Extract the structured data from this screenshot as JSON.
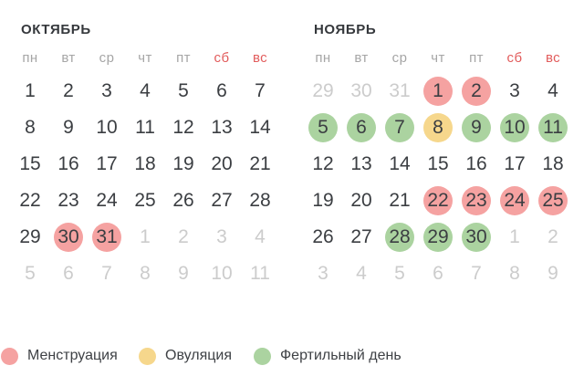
{
  "colors": {
    "title_text": "#35383c",
    "weekday_text": "#a6a6a6",
    "weekend_text": "#e25c5c",
    "day_text": "#3b3e42",
    "muted_day_text": "#cccccc",
    "legend_text": "#3e4145",
    "menstruation": "#f5a2a1",
    "ovulation": "#f6d78c",
    "fertile": "#abd3a0"
  },
  "months": [
    {
      "title": "ОКТЯБРЬ",
      "weekdays": [
        {
          "label": "пн",
          "weekend": false
        },
        {
          "label": "вт",
          "weekend": false
        },
        {
          "label": "ср",
          "weekend": false
        },
        {
          "label": "чт",
          "weekend": false
        },
        {
          "label": "пт",
          "weekend": false
        },
        {
          "label": "сб",
          "weekend": true
        },
        {
          "label": "вс",
          "weekend": true
        }
      ],
      "days": [
        {
          "n": 1,
          "state": "normal"
        },
        {
          "n": 2,
          "state": "normal"
        },
        {
          "n": 3,
          "state": "normal"
        },
        {
          "n": 4,
          "state": "normal"
        },
        {
          "n": 5,
          "state": "normal"
        },
        {
          "n": 6,
          "state": "normal"
        },
        {
          "n": 7,
          "state": "normal"
        },
        {
          "n": 8,
          "state": "normal"
        },
        {
          "n": 9,
          "state": "normal"
        },
        {
          "n": 10,
          "state": "normal"
        },
        {
          "n": 11,
          "state": "normal"
        },
        {
          "n": 12,
          "state": "normal"
        },
        {
          "n": 13,
          "state": "normal"
        },
        {
          "n": 14,
          "state": "normal"
        },
        {
          "n": 15,
          "state": "normal"
        },
        {
          "n": 16,
          "state": "normal"
        },
        {
          "n": 17,
          "state": "normal"
        },
        {
          "n": 18,
          "state": "normal"
        },
        {
          "n": 19,
          "state": "normal"
        },
        {
          "n": 20,
          "state": "normal"
        },
        {
          "n": 21,
          "state": "normal"
        },
        {
          "n": 22,
          "state": "normal"
        },
        {
          "n": 23,
          "state": "normal"
        },
        {
          "n": 24,
          "state": "normal"
        },
        {
          "n": 25,
          "state": "normal"
        },
        {
          "n": 26,
          "state": "normal"
        },
        {
          "n": 27,
          "state": "normal"
        },
        {
          "n": 28,
          "state": "normal"
        },
        {
          "n": 29,
          "state": "normal"
        },
        {
          "n": 30,
          "state": "menstruation"
        },
        {
          "n": 31,
          "state": "menstruation"
        },
        {
          "n": 1,
          "state": "outside"
        },
        {
          "n": 2,
          "state": "outside"
        },
        {
          "n": 3,
          "state": "outside"
        },
        {
          "n": 4,
          "state": "outside"
        },
        {
          "n": 5,
          "state": "outside"
        },
        {
          "n": 6,
          "state": "outside"
        },
        {
          "n": 7,
          "state": "outside"
        },
        {
          "n": 8,
          "state": "outside"
        },
        {
          "n": 9,
          "state": "outside"
        },
        {
          "n": 10,
          "state": "outside"
        },
        {
          "n": 11,
          "state": "outside"
        }
      ]
    },
    {
      "title": "НОЯБРЬ",
      "weekdays": [
        {
          "label": "пн",
          "weekend": false
        },
        {
          "label": "вт",
          "weekend": false
        },
        {
          "label": "ср",
          "weekend": false
        },
        {
          "label": "чт",
          "weekend": false
        },
        {
          "label": "пт",
          "weekend": false
        },
        {
          "label": "сб",
          "weekend": true
        },
        {
          "label": "вс",
          "weekend": true
        }
      ],
      "days": [
        {
          "n": 29,
          "state": "outside"
        },
        {
          "n": 30,
          "state": "outside"
        },
        {
          "n": 31,
          "state": "outside"
        },
        {
          "n": 1,
          "state": "menstruation"
        },
        {
          "n": 2,
          "state": "menstruation"
        },
        {
          "n": 3,
          "state": "normal"
        },
        {
          "n": 4,
          "state": "normal"
        },
        {
          "n": 5,
          "state": "fertile"
        },
        {
          "n": 6,
          "state": "fertile"
        },
        {
          "n": 7,
          "state": "fertile"
        },
        {
          "n": 8,
          "state": "ovulation"
        },
        {
          "n": 9,
          "state": "fertile"
        },
        {
          "n": 10,
          "state": "fertile"
        },
        {
          "n": 11,
          "state": "fertile"
        },
        {
          "n": 12,
          "state": "normal"
        },
        {
          "n": 13,
          "state": "normal"
        },
        {
          "n": 14,
          "state": "normal"
        },
        {
          "n": 15,
          "state": "normal"
        },
        {
          "n": 16,
          "state": "normal"
        },
        {
          "n": 17,
          "state": "normal"
        },
        {
          "n": 18,
          "state": "normal"
        },
        {
          "n": 19,
          "state": "normal"
        },
        {
          "n": 20,
          "state": "normal"
        },
        {
          "n": 21,
          "state": "normal"
        },
        {
          "n": 22,
          "state": "menstruation"
        },
        {
          "n": 23,
          "state": "menstruation"
        },
        {
          "n": 24,
          "state": "menstruation"
        },
        {
          "n": 25,
          "state": "menstruation"
        },
        {
          "n": 26,
          "state": "normal"
        },
        {
          "n": 27,
          "state": "normal"
        },
        {
          "n": 28,
          "state": "fertile"
        },
        {
          "n": 29,
          "state": "fertile"
        },
        {
          "n": 30,
          "state": "fertile"
        },
        {
          "n": 1,
          "state": "outside"
        },
        {
          "n": 2,
          "state": "outside"
        },
        {
          "n": 3,
          "state": "outside"
        },
        {
          "n": 4,
          "state": "outside"
        },
        {
          "n": 5,
          "state": "outside"
        },
        {
          "n": 6,
          "state": "outside"
        },
        {
          "n": 7,
          "state": "outside"
        },
        {
          "n": 8,
          "state": "outside"
        },
        {
          "n": 9,
          "state": "outside"
        }
      ]
    }
  ],
  "legend": [
    {
      "label": "Менструация",
      "type": "menstruation"
    },
    {
      "label": "Овуляция",
      "type": "ovulation"
    },
    {
      "label": "Фертильный день",
      "type": "fertile"
    }
  ]
}
